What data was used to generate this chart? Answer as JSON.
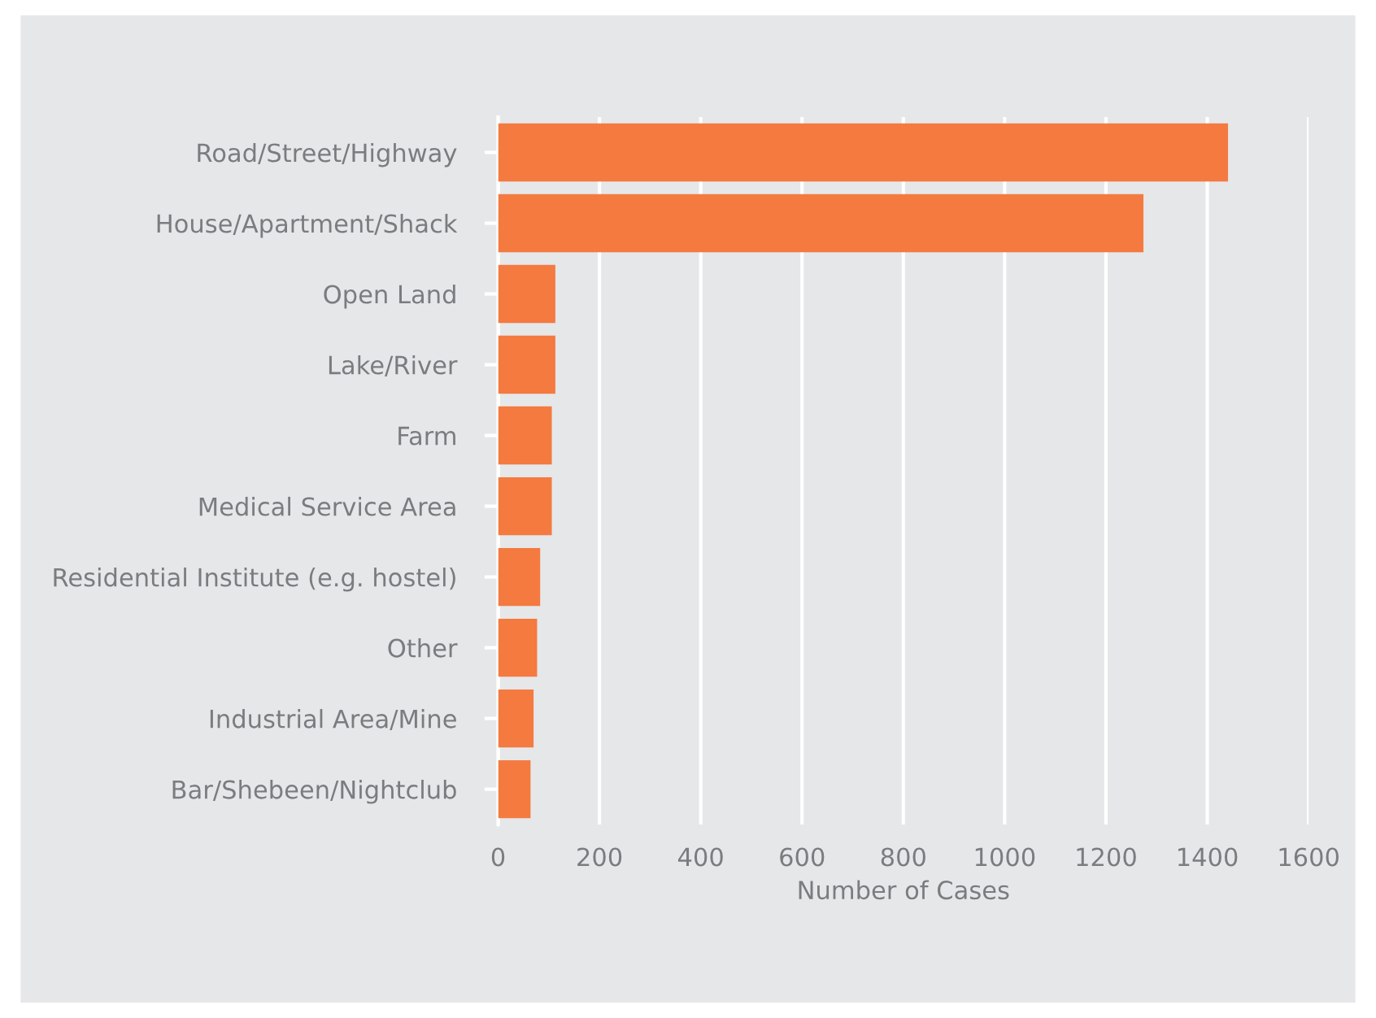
{
  "chart_data": {
    "type": "bar",
    "orientation": "horizontal",
    "xlabel": "Number of Cases",
    "categories": [
      "Road/Street/Highway",
      "House/Apartment/Shack",
      "Open Land",
      "Lake/River",
      "Farm",
      "Medical Service Area",
      "Residential Institute (e.g. hostel)",
      "Other",
      "Industrial Area/Mine",
      "Bar/Shebeen/Nightclub"
    ],
    "values": [
      1441,
      1274,
      113,
      113,
      106,
      106,
      83,
      77,
      70,
      64
    ],
    "color": "#f47a40",
    "xlim": [
      0,
      1600
    ],
    "xticks": [
      0,
      200,
      400,
      600,
      800,
      1000,
      1200,
      1400,
      1600
    ],
    "grid": "x",
    "legend": false
  }
}
